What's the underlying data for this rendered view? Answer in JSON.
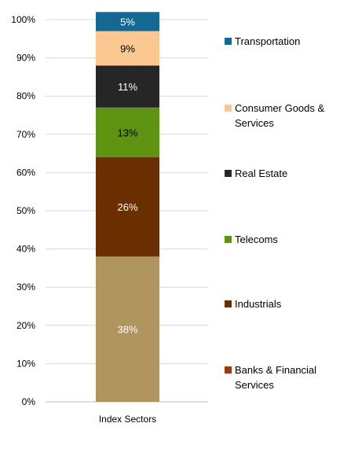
{
  "chart_data": {
    "type": "bar",
    "stacked": true,
    "categories": [
      "Index Sectors"
    ],
    "series": [
      {
        "name": "Banks & Financial Services",
        "values": [
          38
        ],
        "label": "38%",
        "color": "#b0955f",
        "legend_color": "#9e3a12",
        "label_color": "#ffffff"
      },
      {
        "name": "Industrials",
        "values": [
          26
        ],
        "label": "26%",
        "color": "#6a2e00",
        "legend_color": "#6a2e00",
        "label_color": "#ffffff"
      },
      {
        "name": "Telecoms",
        "values": [
          13
        ],
        "label": "13%",
        "color": "#5f9412",
        "legend_color": "#5f9412",
        "label_color": "#000000"
      },
      {
        "name": "Real Estate",
        "values": [
          11
        ],
        "label": "11%",
        "color": "#262626",
        "legend_color": "#262626",
        "label_color": "#ffffff"
      },
      {
        "name": "Consumer Goods & Services",
        "values": [
          9
        ],
        "label": "9%",
        "color": "#fac890",
        "legend_color": "#fac890",
        "label_color": "#000000"
      },
      {
        "name": "Transportation",
        "values": [
          5
        ],
        "label": "5%",
        "color": "#146994",
        "legend_color": "#146994",
        "label_color": "#ffffff"
      }
    ],
    "ylim": [
      0,
      100
    ],
    "yticks": [
      "0%",
      "10%",
      "20%",
      "30%",
      "40%",
      "50%",
      "60%",
      "70%",
      "80%",
      "90%",
      "100%"
    ],
    "title": "",
    "xlabel": "",
    "ylabel": "",
    "grid": true,
    "legend_position": "right"
  }
}
